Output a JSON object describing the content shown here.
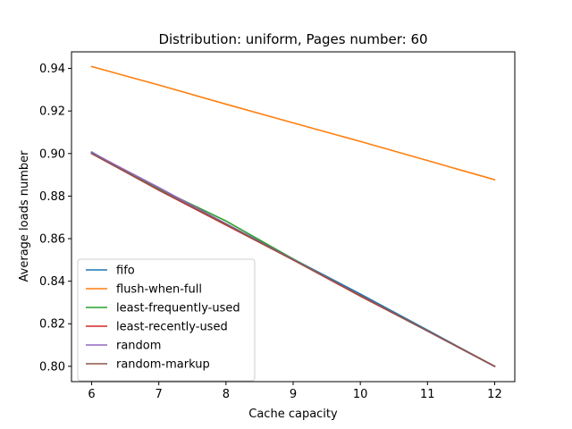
{
  "chart_data": {
    "type": "line",
    "title": "Distribution: uniform, Pages number: 60",
    "xlabel": "Cache capacity",
    "ylabel": "Average loads number",
    "xlim": [
      5.7,
      12.3
    ],
    "ylim": [
      0.7928,
      0.9478
    ],
    "xticks": [
      6,
      7,
      8,
      9,
      10,
      11,
      12
    ],
    "yticks": [
      0.8,
      0.82,
      0.84,
      0.86,
      0.88,
      0.9,
      0.92,
      0.94
    ],
    "ytick_labels": [
      "0.80",
      "0.82",
      "0.84",
      "0.86",
      "0.88",
      "0.90",
      "0.92",
      "0.94"
    ],
    "grid": false,
    "legend_position": "lower-left",
    "x": [
      6,
      7,
      8,
      9,
      10,
      11,
      12
    ],
    "series": [
      {
        "name": "fifo",
        "color": "#1f77b4",
        "values": [
          0.9007,
          0.883,
          0.867,
          0.8504,
          0.834,
          0.817,
          0.8
        ]
      },
      {
        "name": "flush-when-full",
        "color": "#ff7f0e",
        "values": [
          0.9409,
          0.9322,
          0.9232,
          0.9144,
          0.9057,
          0.8967,
          0.8877
        ]
      },
      {
        "name": "least-frequently-used",
        "color": "#2ca02c",
        "values": [
          0.9003,
          0.8835,
          0.8683,
          0.8505,
          0.833,
          0.8166,
          0.8
        ]
      },
      {
        "name": "least-recently-used",
        "color": "#d62728",
        "values": [
          0.9,
          0.8828,
          0.8664,
          0.85,
          0.833,
          0.8166,
          0.8
        ]
      },
      {
        "name": "random",
        "color": "#9467bd",
        "values": [
          0.9005,
          0.884,
          0.867,
          0.8502,
          0.8333,
          0.8166,
          0.8
        ]
      },
      {
        "name": "random-markup",
        "color": "#8c564b",
        "values": [
          0.9,
          0.883,
          0.8667,
          0.85,
          0.8333,
          0.8166,
          0.8
        ]
      }
    ]
  }
}
